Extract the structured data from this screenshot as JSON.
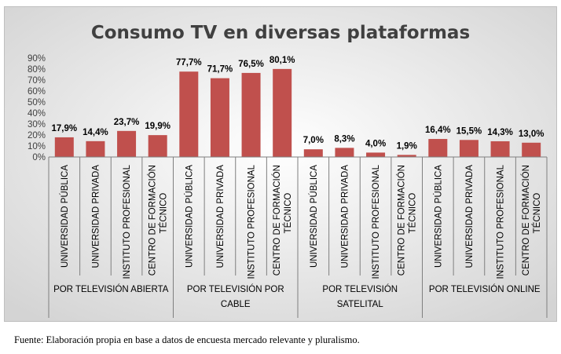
{
  "chart_data": {
    "type": "bar",
    "title": "Consumo TV en diversas plataformas",
    "xlabel": "",
    "ylabel": "",
    "ylim": [
      0,
      90
    ],
    "yticks": [
      "0%",
      "10%",
      "20%",
      "30%",
      "40%",
      "50%",
      "60%",
      "70%",
      "80%",
      "90%"
    ],
    "grid": false,
    "legend": "none",
    "bar_color": "#c0504d",
    "groups": [
      {
        "label": "POR TELEVISIÓN ABIERTA",
        "categories": [
          "UNIVERSIDAD PÚBLICA",
          "UNIVERSIDAD PRIVADA",
          "INSTITUTO PROFESIONAL",
          "CENTRO DE FORMACIÓN TÉCNICO"
        ],
        "values": [
          17.9,
          14.4,
          23.7,
          19.9
        ],
        "labels": [
          "17,9%",
          "14,4%",
          "23,7%",
          "19,9%"
        ]
      },
      {
        "label": "POR TELEVISIÓN POR CABLE",
        "categories": [
          "UNIVERSIDAD PÚBLICA",
          "UNIVERSIDAD PRIVADA",
          "INSTITUTO PROFESIONAL",
          "CENTRO DE FORMACIÓN TÉCNICO"
        ],
        "values": [
          77.7,
          71.7,
          76.5,
          80.1
        ],
        "labels": [
          "77,7%",
          "71,7%",
          "76,5%",
          "80,1%"
        ]
      },
      {
        "label": "POR TELEVISIÓN SATELITAL",
        "categories": [
          "UNIVERSIDAD PÚBLICA",
          "UNIVERSIDAD PRIVADA",
          "INSTITUTO PROFESIONAL",
          "CENTRO DE FORMACIÓN TÉCNICO"
        ],
        "values": [
          7.0,
          8.3,
          4.0,
          1.9
        ],
        "labels": [
          "7,0%",
          "8,3%",
          "4,0%",
          "1,9%"
        ]
      },
      {
        "label": "POR TELEVISIÓN ONLINE",
        "categories": [
          "UNIVERSIDAD PÚBLICA",
          "UNIVERSIDAD PRIVADA",
          "INSTITUTO PROFESIONAL",
          "CENTRO DE FORMACIÓN TÉCNICO"
        ],
        "values": [
          16.4,
          15.5,
          14.3,
          13.0
        ],
        "labels": [
          "16,4%",
          "15,5%",
          "14,3%",
          "13,0%"
        ]
      }
    ]
  },
  "source": "Fuente: Elaboración propia en base a datos de encuesta mercado relevante y pluralismo."
}
